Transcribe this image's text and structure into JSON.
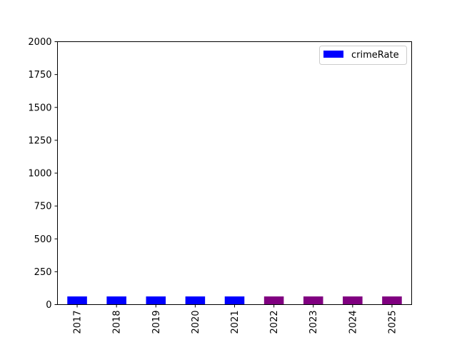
{
  "chart_data": {
    "type": "bar",
    "title": "",
    "xlabel": "",
    "ylabel": "",
    "categories": [
      "2017",
      "2018",
      "2019",
      "2020",
      "2021",
      "2022",
      "2023",
      "2024",
      "2025"
    ],
    "values": [
      62,
      62,
      62,
      62,
      62,
      62,
      62,
      62,
      62
    ],
    "bar_colors": [
      "#0000ff",
      "#0000ff",
      "#0000ff",
      "#0000ff",
      "#0000ff",
      "#800080",
      "#800080",
      "#800080",
      "#800080"
    ],
    "ylim": [
      0,
      2000
    ],
    "yticks": [
      0,
      250,
      500,
      750,
      1000,
      1250,
      1500,
      1750,
      2000
    ],
    "grid": false,
    "legend": {
      "position": "top-right",
      "entries": [
        {
          "name": "crimeRate",
          "color": "#0000ff"
        }
      ]
    }
  }
}
